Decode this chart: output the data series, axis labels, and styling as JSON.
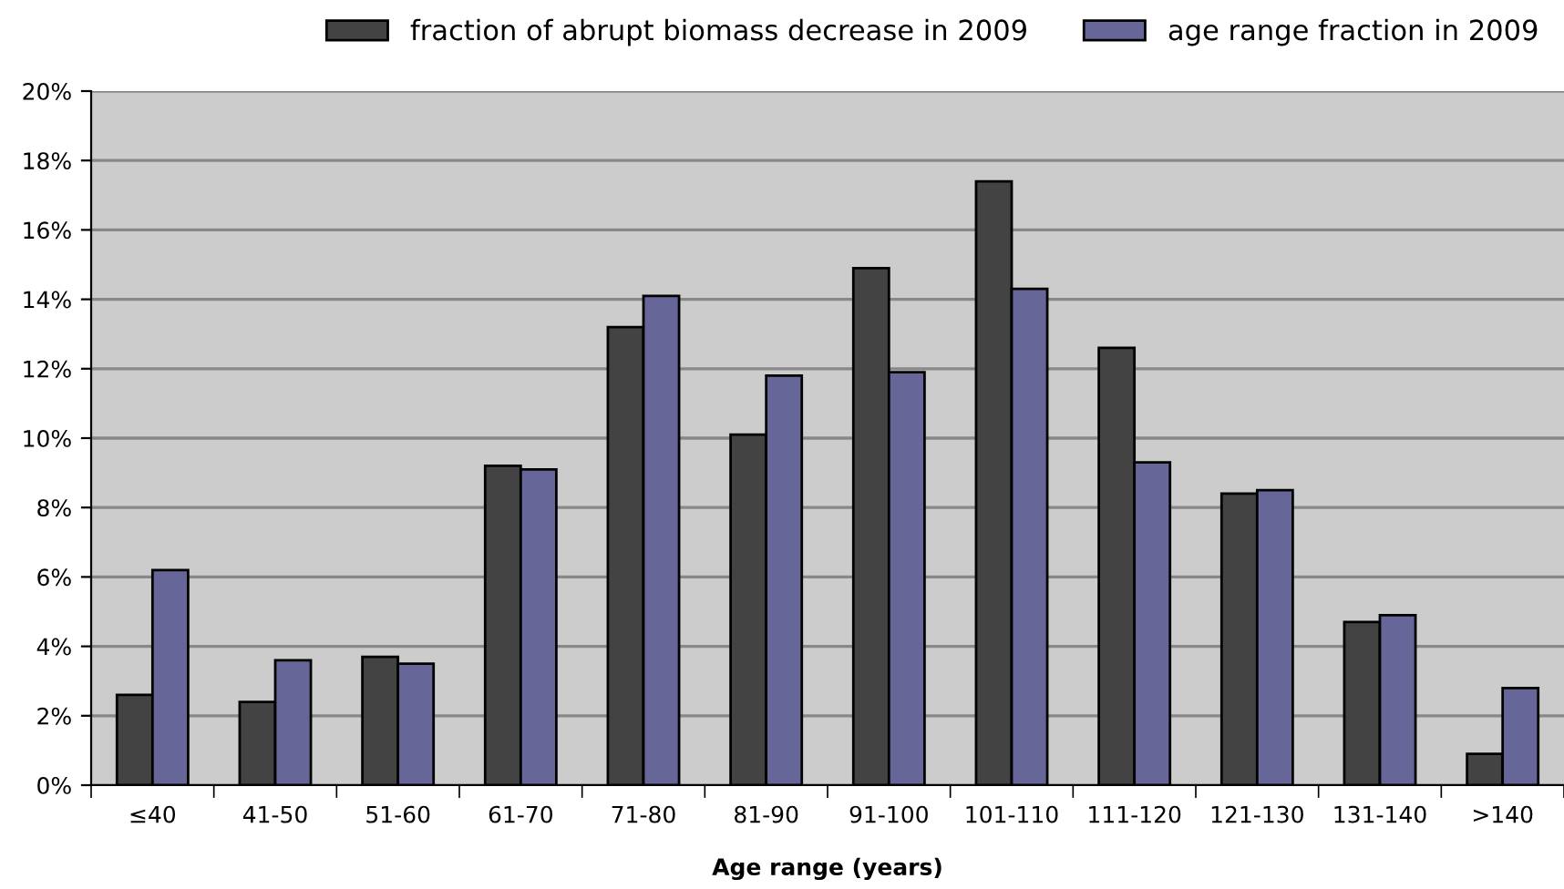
{
  "chart_data": {
    "type": "bar",
    "xlabel": "Age range (years)",
    "categories": [
      "≤40",
      "41-50",
      "51-60",
      "61-70",
      "71-80",
      "81-90",
      "91-100",
      "101-110",
      "111-120",
      "121-130",
      "131-140",
      ">140"
    ],
    "series": [
      {
        "name": "fraction of abrupt biomass decrease in 2009",
        "color": "#434343",
        "values": [
          2.6,
          2.4,
          3.7,
          9.2,
          13.2,
          10.1,
          14.9,
          17.4,
          12.6,
          8.4,
          4.7,
          0.9
        ]
      },
      {
        "name": "age range fraction in 2009",
        "color": "#666699",
        "values": [
          6.2,
          3.6,
          3.5,
          9.1,
          14.1,
          11.8,
          11.9,
          14.3,
          9.3,
          8.5,
          4.9,
          2.8
        ]
      }
    ],
    "ylim": [
      0,
      20
    ],
    "yticks": [
      {
        "value": 0,
        "label": "0%"
      },
      {
        "value": 2,
        "label": "2%"
      },
      {
        "value": 4,
        "label": "4%"
      },
      {
        "value": 6,
        "label": "6%"
      },
      {
        "value": 8,
        "label": "8%"
      },
      {
        "value": 10,
        "label": "10%"
      },
      {
        "value": 12,
        "label": "12%"
      },
      {
        "value": 14,
        "label": "14%"
      },
      {
        "value": 16,
        "label": "16%"
      },
      {
        "value": 18,
        "label": "18%"
      },
      {
        "value": 20,
        "label": "20%"
      }
    ],
    "grid": "y",
    "legend": "top"
  }
}
